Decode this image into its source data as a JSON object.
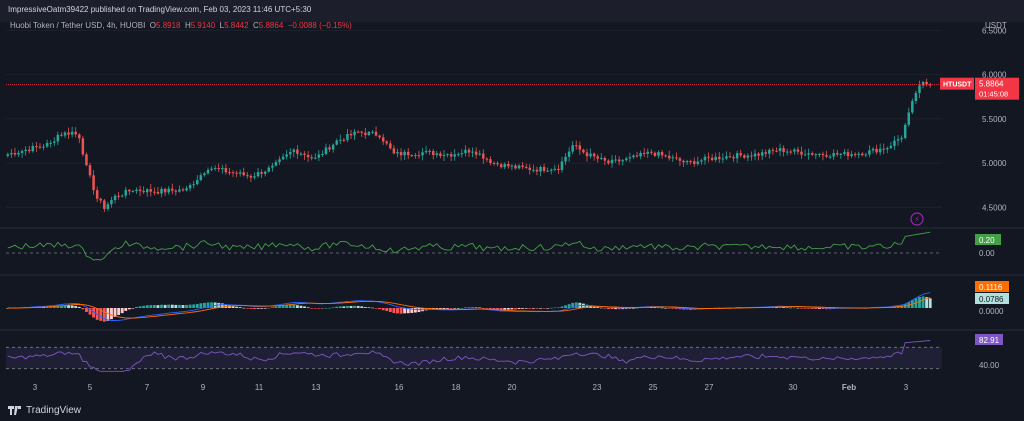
{
  "published_line": "ImpressiveOatm39422 published on TradingView.com, Feb 03, 2023 11:46 UTC+5:30",
  "symbol": {
    "name": "Huobi Token / Tether USD, 4h, HUOBI",
    "o_label": "O",
    "o": "5.8918",
    "h_label": "H",
    "h": "5.9140",
    "l_label": "L",
    "l": "5.8442",
    "c_label": "C",
    "c": "5.8864",
    "change": "−0.0088 (−0.15%)"
  },
  "currency": "USDT",
  "price_tag": {
    "symbol": "HTUSDT",
    "price": "5.8864",
    "countdown": "01:45:08"
  },
  "logo": "TradingView",
  "colors": {
    "up": "#26a69a",
    "down": "#ef5350",
    "bg": "#131722",
    "rsi": "#7e57c2",
    "osc": "#43a047",
    "macd": "#2962ff",
    "signal": "#ff6d00"
  },
  "chart_data": [
    {
      "type": "candlestick",
      "title": "Huobi Token / Tether USD, 4h, HUOBI",
      "x_ticks": [
        "3",
        "5",
        "7",
        "9",
        "11",
        "13",
        "16",
        "18",
        "20",
        "23",
        "25",
        "27",
        "30",
        "Feb",
        "3"
      ],
      "y_ticks": [
        "6.5000",
        "6.0000",
        "5.5000",
        "5.0000",
        "4.5000"
      ],
      "ylim": [
        4.3,
        6.55
      ],
      "close_path": [
        {
          "i": 0,
          "p": 5.1
        },
        {
          "i": 8,
          "p": 5.18
        },
        {
          "i": 12,
          "p": 5.22
        },
        {
          "i": 14,
          "p": 5.32
        },
        {
          "i": 18,
          "p": 5.35
        },
        {
          "i": 20,
          "p": 5.3
        },
        {
          "i": 22,
          "p": 4.95
        },
        {
          "i": 25,
          "p": 4.6
        },
        {
          "i": 27,
          "p": 4.5
        },
        {
          "i": 30,
          "p": 4.62
        },
        {
          "i": 35,
          "p": 4.7
        },
        {
          "i": 42,
          "p": 4.68
        },
        {
          "i": 50,
          "p": 4.7
        },
        {
          "i": 56,
          "p": 4.95
        },
        {
          "i": 62,
          "p": 4.9
        },
        {
          "i": 68,
          "p": 4.85
        },
        {
          "i": 74,
          "p": 4.95
        },
        {
          "i": 80,
          "p": 5.15
        },
        {
          "i": 86,
          "p": 5.05
        },
        {
          "i": 92,
          "p": 5.25
        },
        {
          "i": 98,
          "p": 5.35
        },
        {
          "i": 104,
          "p": 5.32
        },
        {
          "i": 108,
          "p": 5.1
        },
        {
          "i": 116,
          "p": 5.12
        },
        {
          "i": 124,
          "p": 5.1
        },
        {
          "i": 130,
          "p": 5.15
        },
        {
          "i": 136,
          "p": 5.0
        },
        {
          "i": 142,
          "p": 4.95
        },
        {
          "i": 148,
          "p": 4.93
        },
        {
          "i": 154,
          "p": 4.95
        },
        {
          "i": 158,
          "p": 5.2
        },
        {
          "i": 162,
          "p": 5.1
        },
        {
          "i": 168,
          "p": 5.0
        },
        {
          "i": 174,
          "p": 5.05
        },
        {
          "i": 180,
          "p": 5.12
        },
        {
          "i": 186,
          "p": 5.05
        },
        {
          "i": 190,
          "p": 5.0
        },
        {
          "i": 196,
          "p": 5.05
        },
        {
          "i": 202,
          "p": 5.08
        },
        {
          "i": 210,
          "p": 5.1
        },
        {
          "i": 216,
          "p": 5.15
        },
        {
          "i": 222,
          "p": 5.12
        },
        {
          "i": 228,
          "p": 5.1
        },
        {
          "i": 234,
          "p": 5.1
        },
        {
          "i": 240,
          "p": 5.12
        },
        {
          "i": 246,
          "p": 5.18
        },
        {
          "i": 250,
          "p": 5.3
        },
        {
          "i": 252,
          "p": 5.55
        },
        {
          "i": 254,
          "p": 5.8
        },
        {
          "i": 256,
          "p": 5.9
        },
        {
          "i": 258,
          "p": 5.89
        }
      ],
      "last_price": 5.8864
    },
    {
      "type": "line",
      "name": "oscillator",
      "value_label": "0.20",
      "zero_label": "0.00",
      "y_ticks": [
        "0.00"
      ]
    },
    {
      "type": "histogram+line",
      "name": "MACD",
      "value_labels": [
        "0.1116",
        "0.0786"
      ],
      "zero_label": "0.0000",
      "y_ticks": [
        "0.0000"
      ]
    },
    {
      "type": "line",
      "name": "RSI",
      "value_label": "82.91",
      "y_ticks": [
        "40.00"
      ],
      "band": [
        30,
        70
      ]
    }
  ]
}
